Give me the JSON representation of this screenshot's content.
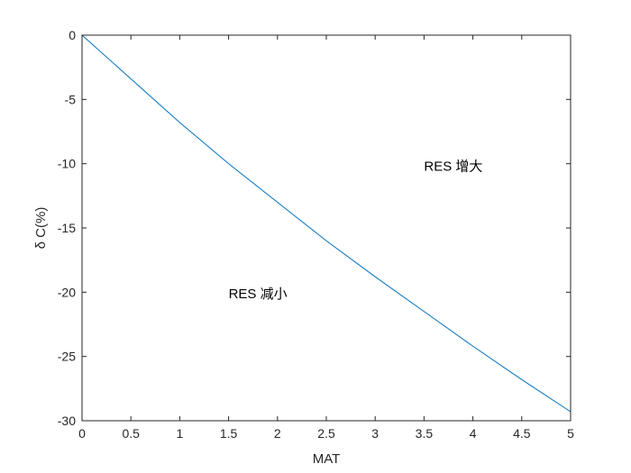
{
  "chart_data": {
    "type": "line",
    "xlabel": "MAT",
    "ylabel": "δ C(%)",
    "xlim": [
      0,
      5
    ],
    "ylim": [
      -30,
      0
    ],
    "xticks": [
      0,
      0.5,
      1,
      1.5,
      2,
      2.5,
      3,
      3.5,
      4,
      4.5,
      5
    ],
    "yticks": [
      0,
      -5,
      -10,
      -15,
      -20,
      -25,
      -30
    ],
    "grid": false,
    "series": [
      {
        "color": "#0072BD",
        "x": [
          0,
          0.5,
          1,
          1.5,
          2,
          2.5,
          3,
          3.5,
          4,
          4.5,
          5
        ],
        "y": [
          0,
          -3.4,
          -6.8,
          -10.0,
          -13.0,
          -16.0,
          -18.8,
          -21.5,
          -24.2,
          -26.8,
          -29.3
        ]
      }
    ],
    "annotations": [
      {
        "text": "RES 增大",
        "x": 3.5,
        "y": -10.2
      },
      {
        "text": "RES 减小",
        "x": 1.5,
        "y": -20.1
      }
    ]
  }
}
